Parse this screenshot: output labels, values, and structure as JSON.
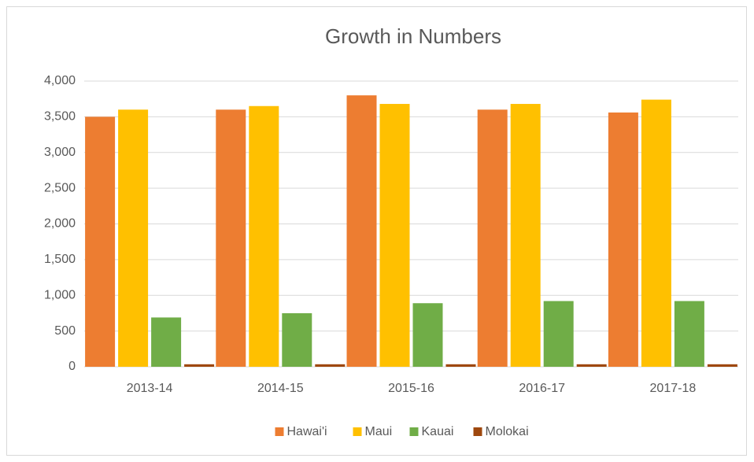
{
  "chart_data": {
    "type": "bar",
    "title": "Growth in Numbers",
    "categories": [
      "2013-14",
      "2014-15",
      "2015-16",
      "2016-17",
      "2017-18"
    ],
    "series": [
      {
        "name": "Hawai'i",
        "color": "#ed7d31",
        "values": [
          3500,
          3600,
          3800,
          3600,
          3560
        ]
      },
      {
        "name": "Maui",
        "color": "#ffc000",
        "values": [
          3600,
          3650,
          3680,
          3680,
          3740
        ]
      },
      {
        "name": "Kauai",
        "color": "#70ad47",
        "values": [
          690,
          750,
          890,
          920,
          920
        ]
      },
      {
        "name": "Molokai",
        "color": "#9e480e",
        "values": [
          35,
          35,
          35,
          35,
          35
        ]
      }
    ],
    "ylim": [
      0,
      4000
    ],
    "yticks": [
      0,
      500,
      {
        "value": 1000,
        "label": "1,000"
      },
      {
        "value": 1500,
        "label": "1,500"
      },
      {
        "value": 2000,
        "label": "2,000"
      },
      {
        "value": 2500,
        "label": "2,500"
      },
      {
        "value": 3000,
        "label": "3,000"
      },
      {
        "value": 3500,
        "label": "3,500"
      },
      {
        "value": 4000,
        "label": "4,000"
      }
    ],
    "grid": true,
    "legend": "bottom"
  }
}
